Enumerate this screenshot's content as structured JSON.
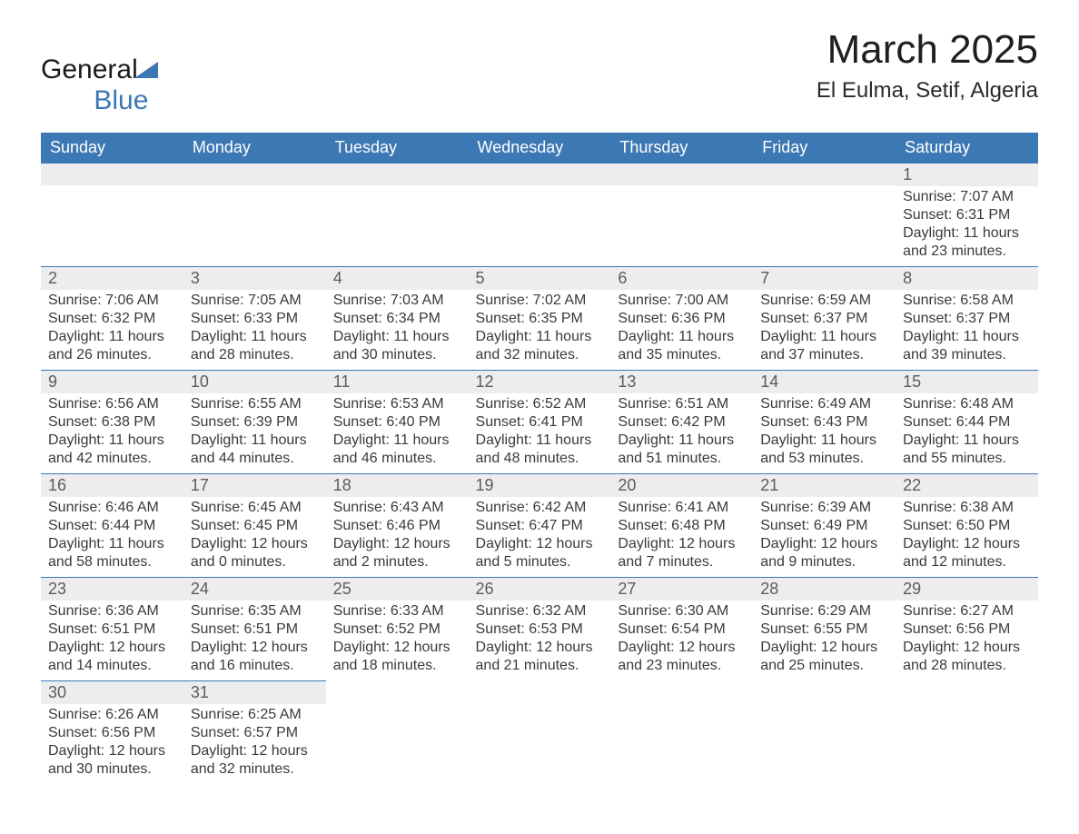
{
  "logo": {
    "word1": "General",
    "word2": "Blue"
  },
  "title": {
    "month": "March 2025",
    "location": "El Eulma, Setif, Algeria"
  },
  "weekdays": [
    "Sunday",
    "Monday",
    "Tuesday",
    "Wednesday",
    "Thursday",
    "Friday",
    "Saturday"
  ],
  "styling": {
    "header_bg": "#3C78B4",
    "header_text": "#ffffff",
    "daynum_bg": "#ededed",
    "row_border": "#3C78B4",
    "body_text": "#3a3a3a",
    "title_fontsize": 44,
    "loc_fontsize": 24,
    "weekday_fontsize": 18,
    "daynum_fontsize": 18,
    "info_fontsize": 16,
    "page_bg": "#ffffff",
    "columns": 7,
    "total_rows": 6
  },
  "weeks": [
    [
      {
        "n": "",
        "sunrise": "",
        "sunset": "",
        "daylight": ""
      },
      {
        "n": "",
        "sunrise": "",
        "sunset": "",
        "daylight": ""
      },
      {
        "n": "",
        "sunrise": "",
        "sunset": "",
        "daylight": ""
      },
      {
        "n": "",
        "sunrise": "",
        "sunset": "",
        "daylight": ""
      },
      {
        "n": "",
        "sunrise": "",
        "sunset": "",
        "daylight": ""
      },
      {
        "n": "",
        "sunrise": "",
        "sunset": "",
        "daylight": ""
      },
      {
        "n": "1",
        "sunrise": "Sunrise: 7:07 AM",
        "sunset": "Sunset: 6:31 PM",
        "daylight": "Daylight: 11 hours and 23 minutes."
      }
    ],
    [
      {
        "n": "2",
        "sunrise": "Sunrise: 7:06 AM",
        "sunset": "Sunset: 6:32 PM",
        "daylight": "Daylight: 11 hours and 26 minutes."
      },
      {
        "n": "3",
        "sunrise": "Sunrise: 7:05 AM",
        "sunset": "Sunset: 6:33 PM",
        "daylight": "Daylight: 11 hours and 28 minutes."
      },
      {
        "n": "4",
        "sunrise": "Sunrise: 7:03 AM",
        "sunset": "Sunset: 6:34 PM",
        "daylight": "Daylight: 11 hours and 30 minutes."
      },
      {
        "n": "5",
        "sunrise": "Sunrise: 7:02 AM",
        "sunset": "Sunset: 6:35 PM",
        "daylight": "Daylight: 11 hours and 32 minutes."
      },
      {
        "n": "6",
        "sunrise": "Sunrise: 7:00 AM",
        "sunset": "Sunset: 6:36 PM",
        "daylight": "Daylight: 11 hours and 35 minutes."
      },
      {
        "n": "7",
        "sunrise": "Sunrise: 6:59 AM",
        "sunset": "Sunset: 6:37 PM",
        "daylight": "Daylight: 11 hours and 37 minutes."
      },
      {
        "n": "8",
        "sunrise": "Sunrise: 6:58 AM",
        "sunset": "Sunset: 6:37 PM",
        "daylight": "Daylight: 11 hours and 39 minutes."
      }
    ],
    [
      {
        "n": "9",
        "sunrise": "Sunrise: 6:56 AM",
        "sunset": "Sunset: 6:38 PM",
        "daylight": "Daylight: 11 hours and 42 minutes."
      },
      {
        "n": "10",
        "sunrise": "Sunrise: 6:55 AM",
        "sunset": "Sunset: 6:39 PM",
        "daylight": "Daylight: 11 hours and 44 minutes."
      },
      {
        "n": "11",
        "sunrise": "Sunrise: 6:53 AM",
        "sunset": "Sunset: 6:40 PM",
        "daylight": "Daylight: 11 hours and 46 minutes."
      },
      {
        "n": "12",
        "sunrise": "Sunrise: 6:52 AM",
        "sunset": "Sunset: 6:41 PM",
        "daylight": "Daylight: 11 hours and 48 minutes."
      },
      {
        "n": "13",
        "sunrise": "Sunrise: 6:51 AM",
        "sunset": "Sunset: 6:42 PM",
        "daylight": "Daylight: 11 hours and 51 minutes."
      },
      {
        "n": "14",
        "sunrise": "Sunrise: 6:49 AM",
        "sunset": "Sunset: 6:43 PM",
        "daylight": "Daylight: 11 hours and 53 minutes."
      },
      {
        "n": "15",
        "sunrise": "Sunrise: 6:48 AM",
        "sunset": "Sunset: 6:44 PM",
        "daylight": "Daylight: 11 hours and 55 minutes."
      }
    ],
    [
      {
        "n": "16",
        "sunrise": "Sunrise: 6:46 AM",
        "sunset": "Sunset: 6:44 PM",
        "daylight": "Daylight: 11 hours and 58 minutes."
      },
      {
        "n": "17",
        "sunrise": "Sunrise: 6:45 AM",
        "sunset": "Sunset: 6:45 PM",
        "daylight": "Daylight: 12 hours and 0 minutes."
      },
      {
        "n": "18",
        "sunrise": "Sunrise: 6:43 AM",
        "sunset": "Sunset: 6:46 PM",
        "daylight": "Daylight: 12 hours and 2 minutes."
      },
      {
        "n": "19",
        "sunrise": "Sunrise: 6:42 AM",
        "sunset": "Sunset: 6:47 PM",
        "daylight": "Daylight: 12 hours and 5 minutes."
      },
      {
        "n": "20",
        "sunrise": "Sunrise: 6:41 AM",
        "sunset": "Sunset: 6:48 PM",
        "daylight": "Daylight: 12 hours and 7 minutes."
      },
      {
        "n": "21",
        "sunrise": "Sunrise: 6:39 AM",
        "sunset": "Sunset: 6:49 PM",
        "daylight": "Daylight: 12 hours and 9 minutes."
      },
      {
        "n": "22",
        "sunrise": "Sunrise: 6:38 AM",
        "sunset": "Sunset: 6:50 PM",
        "daylight": "Daylight: 12 hours and 12 minutes."
      }
    ],
    [
      {
        "n": "23",
        "sunrise": "Sunrise: 6:36 AM",
        "sunset": "Sunset: 6:51 PM",
        "daylight": "Daylight: 12 hours and 14 minutes."
      },
      {
        "n": "24",
        "sunrise": "Sunrise: 6:35 AM",
        "sunset": "Sunset: 6:51 PM",
        "daylight": "Daylight: 12 hours and 16 minutes."
      },
      {
        "n": "25",
        "sunrise": "Sunrise: 6:33 AM",
        "sunset": "Sunset: 6:52 PM",
        "daylight": "Daylight: 12 hours and 18 minutes."
      },
      {
        "n": "26",
        "sunrise": "Sunrise: 6:32 AM",
        "sunset": "Sunset: 6:53 PM",
        "daylight": "Daylight: 12 hours and 21 minutes."
      },
      {
        "n": "27",
        "sunrise": "Sunrise: 6:30 AM",
        "sunset": "Sunset: 6:54 PM",
        "daylight": "Daylight: 12 hours and 23 minutes."
      },
      {
        "n": "28",
        "sunrise": "Sunrise: 6:29 AM",
        "sunset": "Sunset: 6:55 PM",
        "daylight": "Daylight: 12 hours and 25 minutes."
      },
      {
        "n": "29",
        "sunrise": "Sunrise: 6:27 AM",
        "sunset": "Sunset: 6:56 PM",
        "daylight": "Daylight: 12 hours and 28 minutes."
      }
    ],
    [
      {
        "n": "30",
        "sunrise": "Sunrise: 6:26 AM",
        "sunset": "Sunset: 6:56 PM",
        "daylight": "Daylight: 12 hours and 30 minutes."
      },
      {
        "n": "31",
        "sunrise": "Sunrise: 6:25 AM",
        "sunset": "Sunset: 6:57 PM",
        "daylight": "Daylight: 12 hours and 32 minutes."
      },
      {
        "n": "",
        "sunrise": "",
        "sunset": "",
        "daylight": ""
      },
      {
        "n": "",
        "sunrise": "",
        "sunset": "",
        "daylight": ""
      },
      {
        "n": "",
        "sunrise": "",
        "sunset": "",
        "daylight": ""
      },
      {
        "n": "",
        "sunrise": "",
        "sunset": "",
        "daylight": ""
      },
      {
        "n": "",
        "sunrise": "",
        "sunset": "",
        "daylight": ""
      }
    ]
  ]
}
